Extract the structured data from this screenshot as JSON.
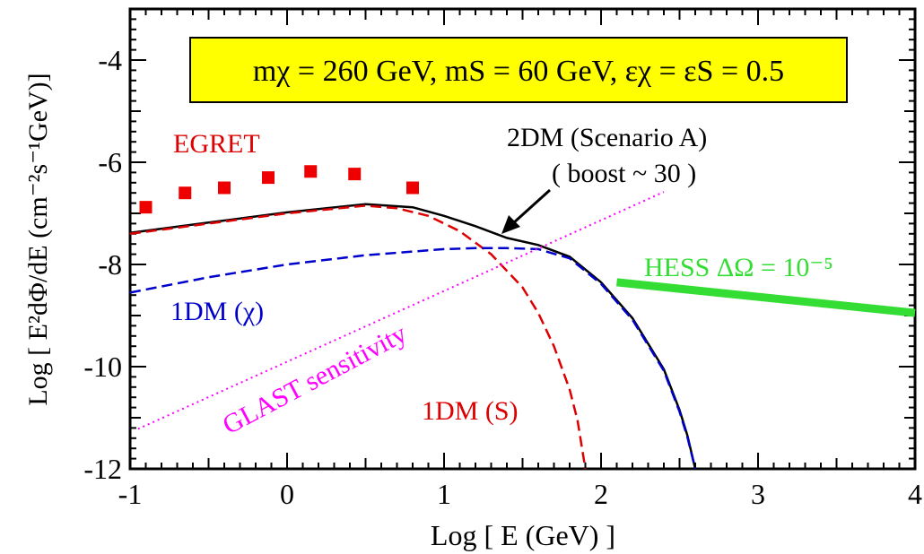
{
  "chart_data": {
    "type": "line",
    "xlim": [
      -1,
      4
    ],
    "ylim": [
      -12,
      -3
    ],
    "x_scale": "log10 of energy",
    "grid": false,
    "xlabel": "Log [ E (GeV) ]",
    "ylabel": "Log [ E²dΦ/dE (cm⁻²s⁻¹GeV)]",
    "x_ticks": [
      {
        "value": -1,
        "label": "-1"
      },
      {
        "value": 0,
        "label": "0"
      },
      {
        "value": 1,
        "label": "1"
      },
      {
        "value": 2,
        "label": "2"
      },
      {
        "value": 3,
        "label": "3"
      },
      {
        "value": 4,
        "label": "4"
      }
    ],
    "y_ticks": [
      {
        "value": -12,
        "label": "-12"
      },
      {
        "value": -10,
        "label": "-10"
      },
      {
        "value": -8,
        "label": "-8"
      },
      {
        "value": -6,
        "label": "-6"
      },
      {
        "value": -4,
        "label": "-4"
      }
    ],
    "parameter_box": {
      "text": "mχ = 260 GeV, mS = 60 GeV, εχ = εS = 0.5",
      "fill": "#ffff00"
    },
    "series": [
      {
        "name": "2DM (Scenario A)",
        "name_line2": "( boost ~ 30 )",
        "style": "solid",
        "color": "#000000",
        "points": [
          [
            -1,
            -7.38
          ],
          [
            -0.5,
            -7.18
          ],
          [
            0,
            -6.98
          ],
          [
            0.5,
            -6.82
          ],
          [
            0.8,
            -6.88
          ],
          [
            1.0,
            -7.05
          ],
          [
            1.2,
            -7.25
          ],
          [
            1.4,
            -7.48
          ],
          [
            1.6,
            -7.62
          ],
          [
            1.8,
            -7.85
          ],
          [
            2.0,
            -8.35
          ],
          [
            2.2,
            -9.05
          ],
          [
            2.4,
            -10.05
          ],
          [
            2.5,
            -10.85
          ],
          [
            2.55,
            -11.35
          ],
          [
            2.6,
            -12.0
          ]
        ]
      },
      {
        "name": "1DM (S)",
        "style": "dashed",
        "color": "#dd0000",
        "points": [
          [
            -1,
            -7.4
          ],
          [
            -0.5,
            -7.2
          ],
          [
            0,
            -7.0
          ],
          [
            0.5,
            -6.85
          ],
          [
            0.7,
            -6.9
          ],
          [
            0.9,
            -7.05
          ],
          [
            1.1,
            -7.35
          ],
          [
            1.3,
            -7.8
          ],
          [
            1.5,
            -8.45
          ],
          [
            1.6,
            -8.95
          ],
          [
            1.7,
            -9.6
          ],
          [
            1.8,
            -10.45
          ],
          [
            1.85,
            -11.05
          ],
          [
            1.9,
            -12.0
          ]
        ]
      },
      {
        "name": "1DM (χ)",
        "style": "dashed",
        "color": "#0000cc",
        "points": [
          [
            -1,
            -8.55
          ],
          [
            -0.5,
            -8.25
          ],
          [
            0,
            -8.0
          ],
          [
            0.5,
            -7.82
          ],
          [
            1.0,
            -7.7
          ],
          [
            1.2,
            -7.68
          ],
          [
            1.4,
            -7.68
          ],
          [
            1.6,
            -7.7
          ],
          [
            1.8,
            -7.88
          ],
          [
            2.0,
            -8.38
          ],
          [
            2.2,
            -9.08
          ],
          [
            2.4,
            -10.08
          ],
          [
            2.5,
            -10.88
          ],
          [
            2.55,
            -11.38
          ],
          [
            2.6,
            -12.0
          ]
        ]
      },
      {
        "name": "GLAST sensitivity",
        "style": "dotted",
        "color": "#ff00ff",
        "points": [
          [
            -0.95,
            -11.22
          ],
          [
            2.4,
            -6.58
          ]
        ]
      },
      {
        "name": "HESS ΔΩ = 10⁻⁵",
        "style": "thick",
        "color": "#33dd33",
        "points": [
          [
            2.1,
            -8.35
          ],
          [
            4.0,
            -8.95
          ]
        ]
      }
    ],
    "points_series": {
      "name": "EGRET",
      "color": "#ee0000",
      "points": [
        [
          -0.9,
          -6.88
        ],
        [
          -0.65,
          -6.6
        ],
        [
          -0.4,
          -6.5
        ],
        [
          -0.12,
          -6.3
        ],
        [
          0.15,
          -6.18
        ],
        [
          0.43,
          -6.23
        ],
        [
          0.8,
          -6.5
        ]
      ]
    },
    "annotations": {
      "scenario_label": "2DM (Scenario A)",
      "boost_label": "( boost ~ 30 )",
      "egret_label": "EGRET",
      "one_dm_chi_label": "1DM (χ)",
      "one_dm_s_label": "1DM (S)",
      "glast_label": "GLAST sensitivity",
      "hess_label": "HESS ΔΩ = 10⁻⁵"
    }
  }
}
